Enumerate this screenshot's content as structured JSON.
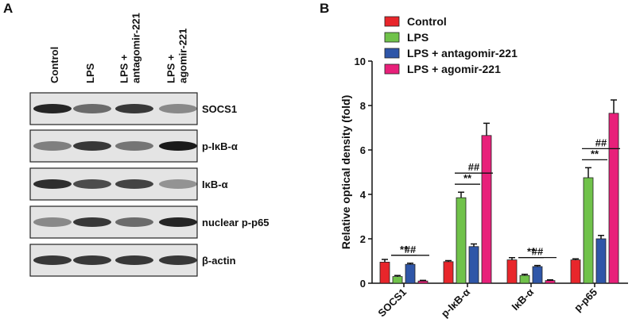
{
  "panel_a": {
    "label": "A",
    "lanes": [
      {
        "lines": [
          "Control"
        ]
      },
      {
        "lines": [
          "LPS"
        ]
      },
      {
        "lines": [
          "LPS +",
          "antagomir-221"
        ]
      },
      {
        "lines": [
          "LPS +",
          "agomir-221"
        ]
      }
    ],
    "proteins": [
      "SOCS1",
      "p-IκB-α",
      "IκB-α",
      "nuclear p-p65",
      "β-actin"
    ]
  },
  "chart_data": {
    "type": "bar",
    "panel_label": "B",
    "ylabel": "Relative optical density (fold)",
    "categories": [
      "SOCS1",
      "p-IκB-α",
      "IκB-α",
      "p-p65"
    ],
    "series": [
      {
        "name": "Control",
        "color": "#e8262b",
        "values": [
          0.95,
          0.97,
          1.05,
          1.05
        ],
        "errors": [
          0.12,
          0.05,
          0.1,
          0.05
        ]
      },
      {
        "name": "LPS",
        "color": "#70c24a",
        "values": [
          0.3,
          3.85,
          0.35,
          4.75
        ],
        "errors": [
          0.05,
          0.25,
          0.05,
          0.45
        ]
      },
      {
        "name": "LPS + antagomir-221",
        "color": "#2f56a8",
        "values": [
          0.85,
          1.65,
          0.75,
          2.0
        ],
        "errors": [
          0.05,
          0.12,
          0.05,
          0.15
        ]
      },
      {
        "name": "LPS + agomir-221",
        "color": "#e8207a",
        "values": [
          0.1,
          6.65,
          0.12,
          7.65
        ],
        "errors": [
          0.03,
          0.55,
          0.03,
          0.6
        ]
      }
    ],
    "brackets": [
      [
        {
          "label": "**",
          "from": 1,
          "to": 2
        },
        {
          "label": "##",
          "from": 1,
          "to": 3
        }
      ],
      [
        {
          "label": "**",
          "from": 1,
          "to": 2
        },
        {
          "label": "##",
          "from": 1,
          "to": 3
        }
      ],
      [
        {
          "label": "**",
          "from": 1,
          "to": 2
        },
        {
          "label": "##",
          "from": 1,
          "to": 3
        }
      ],
      [
        {
          "label": "**",
          "from": 1,
          "to": 2
        },
        {
          "label": "##",
          "from": 1,
          "to": 3
        }
      ]
    ],
    "ylim": [
      0,
      10
    ],
    "yticks": [
      0,
      2,
      4,
      6,
      8,
      10
    ],
    "grid": false,
    "legend": "top-left"
  }
}
